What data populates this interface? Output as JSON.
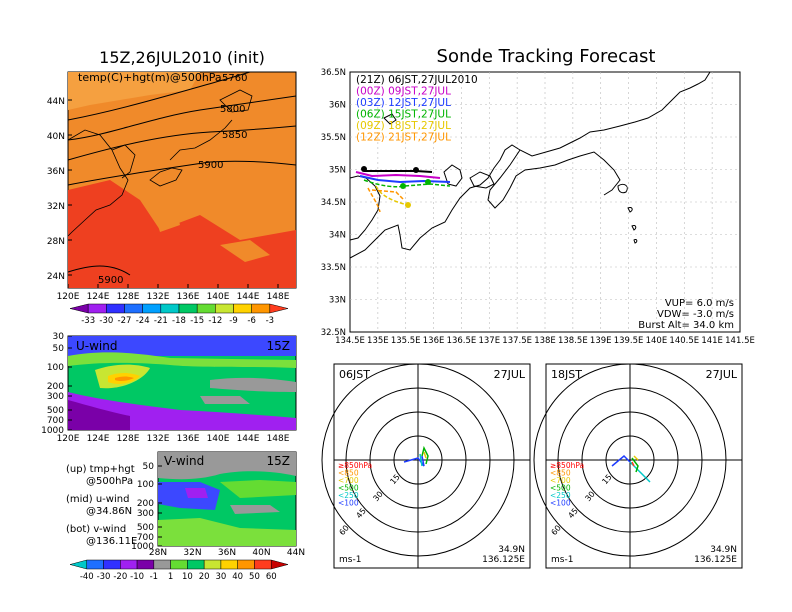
{
  "left_top": {
    "title": "15Z,26JUL2010 (init)",
    "label": "temp(C)+hgt(m)@500hPa",
    "lat_ticks": [
      "44N",
      "40N",
      "36N",
      "32N",
      "28N",
      "24N"
    ],
    "lon_ticks": [
      "120E",
      "124E",
      "128E",
      "132E",
      "136E",
      "140E",
      "144E",
      "148E"
    ],
    "contours": [
      "5760",
      "5800",
      "5850",
      "5900",
      "5900"
    ],
    "colorbar": {
      "labels": [
        "-33",
        "-30",
        "-27",
        "-24",
        "-21",
        "-18",
        "-15",
        "-12",
        "-9",
        "-6",
        "-3"
      ],
      "colors": [
        "#7a00a8",
        "#a020f0",
        "#3030ff",
        "#1e6fff",
        "#00a0ff",
        "#00c8c8",
        "#00c864",
        "#64dc32",
        "#c8e632",
        "#ffd200",
        "#ff9600",
        "#ff3c1e"
      ]
    }
  },
  "uwind": {
    "label": "U-wind",
    "time": "15Z",
    "p_ticks": [
      "30",
      "50",
      "100",
      "200",
      "300",
      "500",
      "700",
      "1000"
    ],
    "lon_ticks": [
      "120E",
      "124E",
      "128E",
      "132E",
      "136E",
      "140E",
      "144E",
      "148E"
    ]
  },
  "vwind": {
    "label": "V-wind",
    "time": "15Z",
    "p_ticks": [
      "50",
      "100",
      "200",
      "300",
      "500",
      "700",
      "1000"
    ],
    "lat_ticks": [
      "28N",
      "32N",
      "36N",
      "40N",
      "44N"
    ]
  },
  "legend": {
    "up": "(up) tmp+hgt",
    "up2": "@500hPa",
    "mid": "(mid) u-wind",
    "mid2": "@34.86N",
    "bot": "(bot) v-wind",
    "bot2": "@136.11E"
  },
  "wind_colorbar": {
    "labels": [
      "-40",
      "-30",
      "-20",
      "-10",
      "-1",
      "1",
      "10",
      "20",
      "30",
      "40",
      "50",
      "60"
    ],
    "colors": [
      "#00c8c8",
      "#1e6fff",
      "#3030ff",
      "#a020f0",
      "#7a00a8",
      "#999999",
      "#64dc32",
      "#00c864",
      "#c8e632",
      "#ffd200",
      "#ff9600",
      "#ff3c1e",
      "#c80000"
    ]
  },
  "forecast": {
    "title": "Sonde Tracking Forecast",
    "lat_ticks": [
      "36.5N",
      "36N",
      "35.5N",
      "35N",
      "34.5N",
      "34N",
      "33.5N",
      "33N",
      "32.5N"
    ],
    "lon_ticks": [
      "134.5E",
      "135E",
      "135.5E",
      "136E",
      "136.5E",
      "137E",
      "137.5E",
      "138E",
      "138.5E",
      "139E",
      "139.5E",
      "140E",
      "140.5E",
      "141E",
      "141.5E"
    ],
    "runs": [
      {
        "text": "(21Z)  06JST,27JUL2010",
        "color": "#000000"
      },
      {
        "text": "(00Z)  09JST,27JUL",
        "color": "#c800c8"
      },
      {
        "text": "(03Z)  12JST,27JUL",
        "color": "#1e3cff"
      },
      {
        "text": "(06Z)  15JST,27JUL",
        "color": "#00b400"
      },
      {
        "text": "(09Z)  18JST,27JUL",
        "color": "#e6c800"
      },
      {
        "text": "(12Z)  21JST,27JUL",
        "color": "#ff9600"
      }
    ],
    "vup": "VUP=  6.0  m/s",
    "vdw": "VDW= -3.0  m/s",
    "burst": "Burst Alt=  34.0  km"
  },
  "hodo_left": {
    "time": "06JST",
    "date": "27JUL",
    "levels": [
      {
        "text": "≥850hPa",
        "color": "#ff0000"
      },
      {
        "text": "<850",
        "color": "#ff9600"
      },
      {
        "text": "<700",
        "color": "#e6c800"
      },
      {
        "text": "<500",
        "color": "#00b400"
      },
      {
        "text": "<250",
        "color": "#00c8c8"
      },
      {
        "text": "<100",
        "color": "#1e3cff"
      }
    ],
    "rings": [
      "15",
      "30",
      "45",
      "60"
    ],
    "units": "ms-1",
    "lat": "34.9N",
    "lon": "136.125E"
  },
  "hodo_right": {
    "time": "18JST",
    "date": "27JUL",
    "levels": [
      {
        "text": "≥850hPa",
        "color": "#ff0000"
      },
      {
        "text": "<850",
        "color": "#ff9600"
      },
      {
        "text": "<700",
        "color": "#e6c800"
      },
      {
        "text": "<500",
        "color": "#00b400"
      },
      {
        "text": "<250",
        "color": "#00c8c8"
      },
      {
        "text": "<100",
        "color": "#1e3cff"
      }
    ],
    "rings": [
      "15",
      "30",
      "45",
      "60"
    ],
    "units": "ms-1",
    "lat": "34.9N",
    "lon": "136.125E"
  }
}
